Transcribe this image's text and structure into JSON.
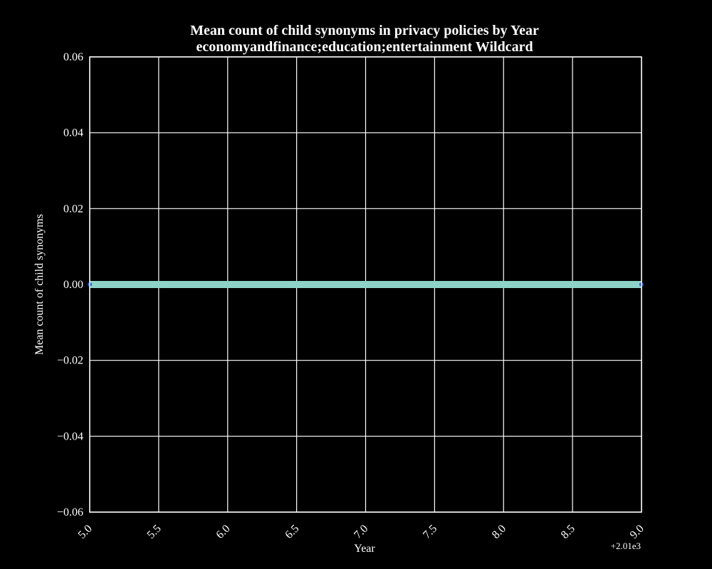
{
  "chart_data": {
    "type": "line",
    "title_line1": "Mean count of child synonyms in privacy policies by Year",
    "title_line2": "economyandfinance;education;entertainment Wildcard",
    "xlabel": "Year",
    "ylabel": "Mean count of child synonyms",
    "x_offset_label": "+2.01e3",
    "xlim": [
      5.0,
      9.0
    ],
    "ylim": [
      -0.06,
      0.06
    ],
    "x_ticks": [
      5.0,
      5.5,
      6.0,
      6.5,
      7.0,
      7.5,
      8.0,
      8.5,
      9.0
    ],
    "x_tick_labels": [
      "5.0",
      "5.5",
      "6.0",
      "6.5",
      "7.0",
      "7.5",
      "8.0",
      "8.5",
      "9.0"
    ],
    "y_ticks": [
      0.06,
      0.04,
      0.02,
      0.0,
      -0.02,
      -0.04,
      -0.06
    ],
    "y_tick_labels": [
      "0.06",
      "0.04",
      "0.02",
      "0.00",
      "−0.02",
      "−0.04",
      "−0.06"
    ],
    "grid": true,
    "series": [
      {
        "x": [
          5.0,
          9.0
        ],
        "y": [
          0.0,
          0.0
        ],
        "color": "#8dd3c7",
        "marker_color": "#1f4fd0"
      }
    ],
    "colors": {
      "background": "#000000",
      "foreground": "#ffffff"
    }
  }
}
